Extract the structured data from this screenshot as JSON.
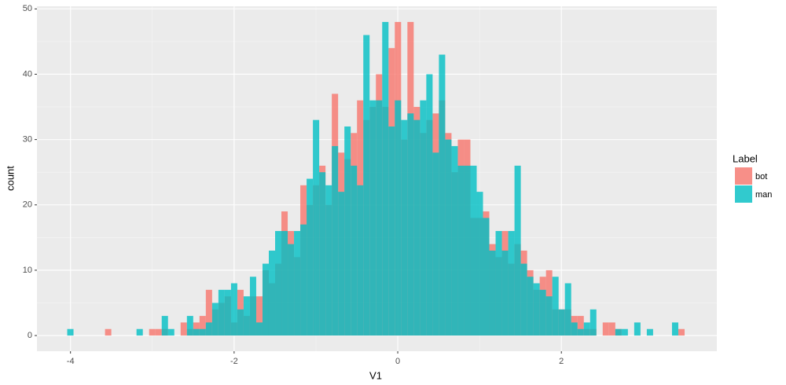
{
  "chart_data": {
    "type": "histogram",
    "x_label": "V1",
    "y_label": "count",
    "legend_title": "Label",
    "bins": [
      -4.04,
      -3.963,
      -3.886,
      -3.809,
      -3.732,
      -3.655,
      -3.578,
      -3.501,
      -3.424,
      -3.347,
      -3.27,
      -3.193,
      -3.116,
      -3.039,
      -2.962,
      -2.885,
      -2.808,
      -2.731,
      -2.654,
      -2.577,
      -2.5,
      -2.423,
      -2.346,
      -2.269,
      -2.192,
      -2.115,
      -2.038,
      -1.961,
      -1.884,
      -1.807,
      -1.73,
      -1.653,
      -1.576,
      -1.499,
      -1.422,
      -1.345,
      -1.268,
      -1.191,
      -1.114,
      -1.037,
      -0.96,
      -0.883,
      -0.806,
      -0.729,
      -0.652,
      -0.575,
      -0.498,
      -0.421,
      -0.344,
      -0.267,
      -0.19,
      -0.113,
      -0.036,
      0.041,
      0.118,
      0.195,
      0.272,
      0.349,
      0.426,
      0.503,
      0.58,
      0.657,
      0.734,
      0.811,
      0.888,
      0.965,
      1.042,
      1.119,
      1.196,
      1.273,
      1.35,
      1.427,
      1.504,
      1.581,
      1.658,
      1.735,
      1.812,
      1.889,
      1.966,
      2.043,
      2.12,
      2.197,
      2.274,
      2.351,
      2.428,
      2.505,
      2.582,
      2.659,
      2.736,
      2.813,
      2.89,
      2.967,
      3.044,
      3.121,
      3.198,
      3.275,
      3.352,
      3.429,
      3.506
    ],
    "series": [
      {
        "name": "bot",
        "color": "#F8766D",
        "values": [
          0,
          0,
          0,
          0,
          0,
          0,
          1,
          0,
          0,
          0,
          0,
          0,
          0,
          1,
          1,
          1,
          0,
          0,
          2,
          1,
          2,
          3,
          7,
          4,
          5,
          6,
          2,
          7,
          3,
          6,
          6,
          10,
          8,
          11,
          19,
          16,
          12,
          23,
          20,
          23,
          26,
          20,
          37,
          28,
          27,
          31,
          36,
          33,
          35,
          40,
          35,
          44,
          48,
          30,
          48,
          35,
          31,
          33,
          34,
          36,
          31,
          25,
          30,
          30,
          18,
          18,
          19,
          14,
          12,
          16,
          11,
          14,
          13,
          10,
          7,
          9,
          10,
          4,
          4,
          4,
          3,
          3,
          1,
          1,
          0,
          2,
          2,
          1,
          0,
          0,
          0,
          0,
          0,
          0,
          0,
          0,
          0,
          1
        ]
      },
      {
        "name": "man",
        "color": "#00BFC4",
        "values": [
          1,
          0,
          0,
          0,
          0,
          0,
          0,
          0,
          0,
          0,
          0,
          1,
          0,
          0,
          0,
          3,
          1,
          0,
          0,
          3,
          1,
          1,
          2,
          5,
          7,
          7,
          8,
          4,
          6,
          9,
          2,
          11,
          13,
          16,
          16,
          14,
          16,
          17,
          24,
          33,
          25,
          23,
          29,
          22,
          32,
          26,
          23,
          46,
          36,
          36,
          48,
          32,
          36,
          33,
          34,
          33,
          36,
          40,
          28,
          43,
          30,
          29,
          26,
          26,
          26,
          22,
          18,
          13,
          16,
          13,
          16,
          26,
          11,
          9,
          8,
          7,
          6,
          9,
          4,
          8,
          2,
          1,
          2,
          4,
          0,
          0,
          0,
          1,
          1,
          0,
          2,
          0,
          1,
          0,
          0,
          0,
          2,
          0
        ]
      }
    ],
    "xlim": [
      -4.41,
      3.9
    ],
    "xticks": [
      -4,
      -2,
      0,
      2
    ],
    "ylim": [
      -2.4,
      50.4
    ],
    "yticks": [
      0,
      10,
      20,
      30,
      40,
      50
    ],
    "grid": true,
    "opacity": 0.8,
    "legend_position": "right"
  }
}
